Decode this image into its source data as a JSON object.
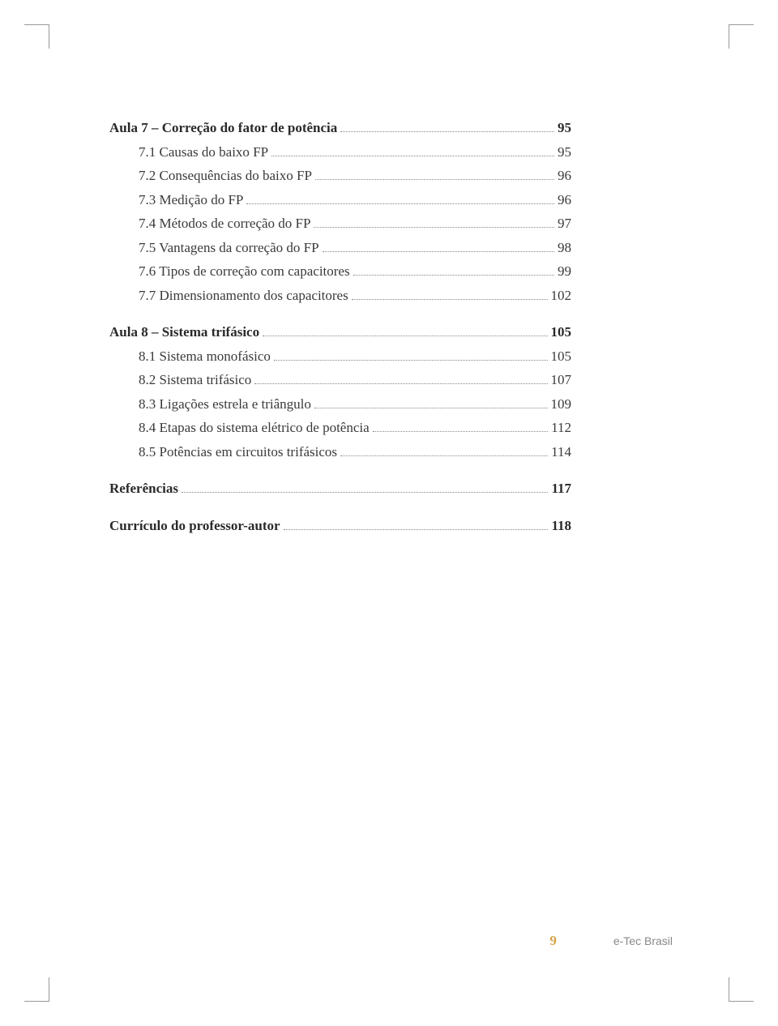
{
  "toc": [
    {
      "label": "Aula 7 – Correção do fator de potência",
      "page": "95",
      "bold": true,
      "indent": false
    },
    {
      "label": "7.1 Causas do baixo FP",
      "page": "95",
      "bold": false,
      "indent": true
    },
    {
      "label": "7.2 Consequências do baixo FP",
      "page": "96",
      "bold": false,
      "indent": true
    },
    {
      "label": "7.3 Medição do FP",
      "page": "96",
      "bold": false,
      "indent": true
    },
    {
      "label": "7.4 Métodos de correção do FP",
      "page": "97",
      "bold": false,
      "indent": true
    },
    {
      "label": "7.5 Vantagens da correção do FP",
      "page": "98",
      "bold": false,
      "indent": true
    },
    {
      "label": "7.6 Tipos de correção com capacitores",
      "page": "99",
      "bold": false,
      "indent": true
    },
    {
      "label": "7.7 Dimensionamento dos capacitores",
      "page": "102",
      "bold": false,
      "indent": true
    },
    {
      "gap": true
    },
    {
      "label": "Aula 8 – Sistema trifásico",
      "page": "105",
      "bold": true,
      "indent": false
    },
    {
      "label": "8.1 Sistema monofásico",
      "page": "105",
      "bold": false,
      "indent": true
    },
    {
      "label": "8.2 Sistema trifásico",
      "page": "107",
      "bold": false,
      "indent": true
    },
    {
      "label": "8.3 Ligações estrela e triângulo",
      "page": "109",
      "bold": false,
      "indent": true
    },
    {
      "label": "8.4 Etapas do sistema elétrico de potência",
      "page": "112",
      "bold": false,
      "indent": true
    },
    {
      "label": "8.5 Potências em circuitos trifásicos",
      "page": "114",
      "bold": false,
      "indent": true
    },
    {
      "gap": true
    },
    {
      "label": "Referências",
      "page": "117",
      "bold": true,
      "indent": false
    },
    {
      "gap": true
    },
    {
      "label": "Currículo do professor-autor",
      "page": "118",
      "bold": true,
      "indent": false
    }
  ],
  "footer": {
    "page_number": "9",
    "brand": "e-Tec Brasil"
  },
  "colors": {
    "text": "#3a3a3a",
    "bold_text": "#2a2a2a",
    "dots": "#888888",
    "page_number": "#d4a348",
    "footer_text": "#888888",
    "background": "#ffffff"
  },
  "typography": {
    "body_fontsize": 17,
    "footer_fontsize": 14,
    "font_family": "Georgia, serif"
  }
}
